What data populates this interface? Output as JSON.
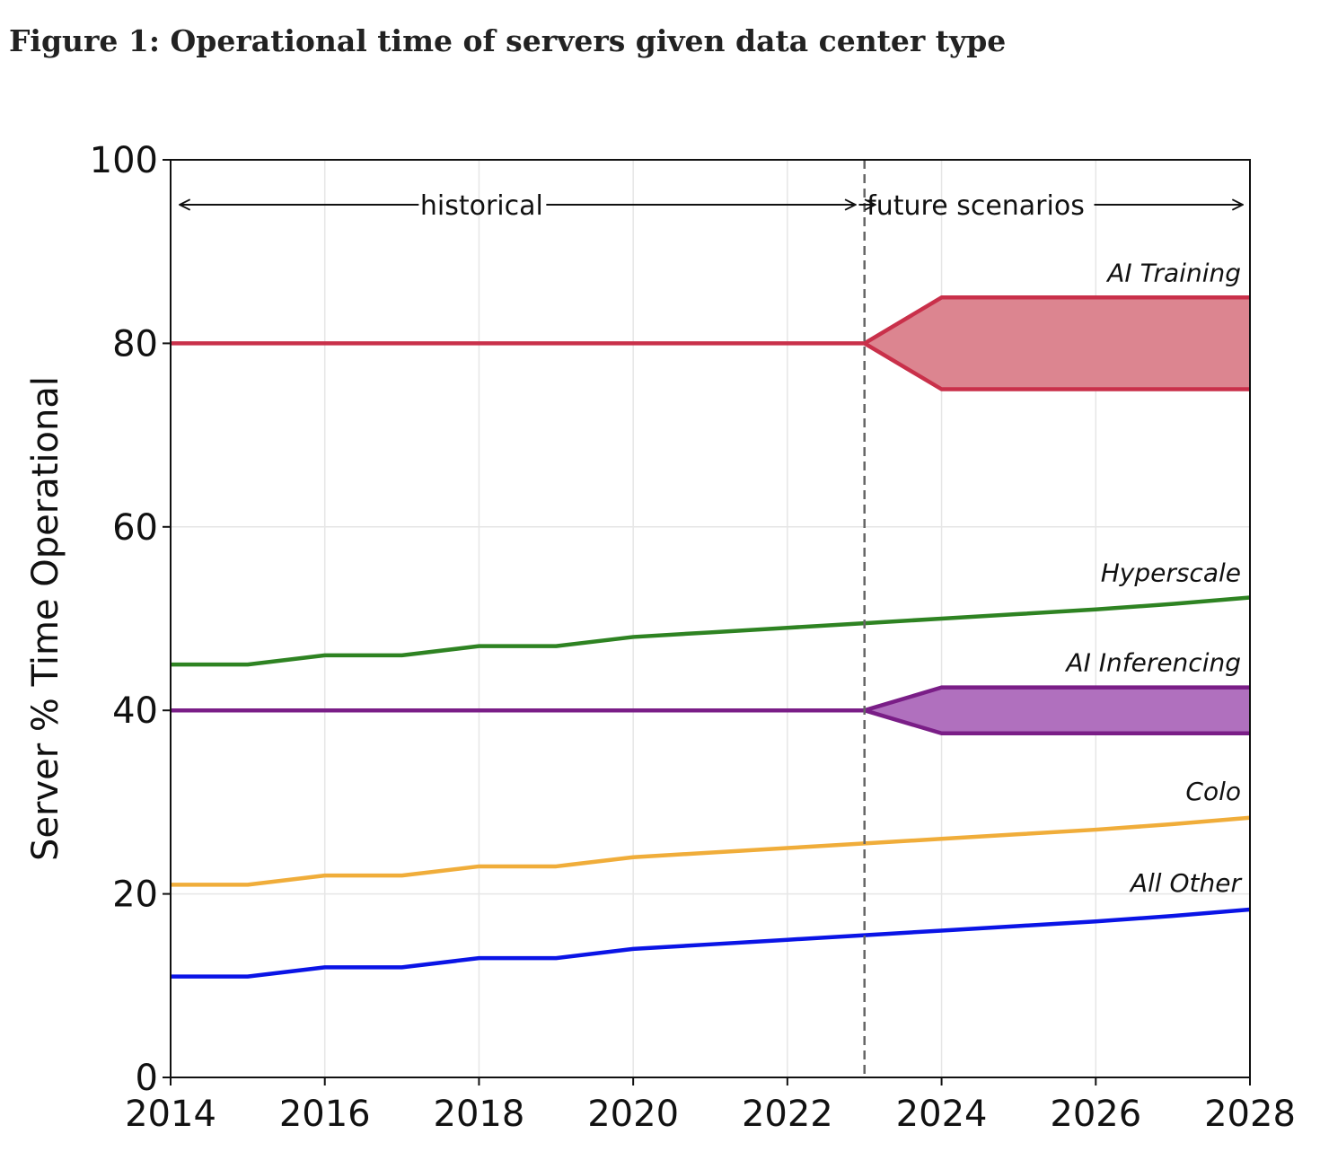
{
  "figure_title": "Figure 1: Operational time of servers given data center type",
  "chart_data": {
    "type": "line",
    "title": "Figure 1: Operational time of servers given data center type",
    "xlabel": "",
    "ylabel": "Server % Time Operational",
    "xlim": [
      2014,
      2028
    ],
    "ylim": [
      0,
      100
    ],
    "xticks": [
      2014,
      2016,
      2018,
      2020,
      2022,
      2024,
      2026,
      2028
    ],
    "yticks": [
      0,
      20,
      40,
      60,
      80,
      100
    ],
    "grid": true,
    "divider_x": 2023,
    "era_labels": {
      "historical": "historical",
      "future": "future scenarios"
    },
    "series": [
      {
        "name": "AI Training",
        "color": "#c9304a",
        "x": [
          2014,
          2023
        ],
        "values": [
          80,
          80
        ],
        "band": {
          "fill": "#dc8590",
          "x": [
            2023,
            2024,
            2028
          ],
          "upper": [
            80,
            85,
            85
          ],
          "lower": [
            80,
            75,
            75
          ]
        }
      },
      {
        "name": "Hyperscale",
        "color": "#2e8322",
        "x": [
          2014,
          2015,
          2016,
          2017,
          2018,
          2019,
          2020,
          2021,
          2022,
          2023,
          2024,
          2025,
          2026,
          2027,
          2028
        ],
        "values": [
          45,
          45,
          46,
          46,
          47,
          47,
          48,
          48.5,
          49,
          49.5,
          50,
          50.5,
          51,
          51.6,
          52.3
        ]
      },
      {
        "name": "AI Inferencing",
        "color": "#7a1e87",
        "x": [
          2014,
          2023
        ],
        "values": [
          40,
          40
        ],
        "band": {
          "fill": "#b070be",
          "x": [
            2023,
            2024,
            2028
          ],
          "upper": [
            40,
            42.5,
            42.5
          ],
          "lower": [
            40,
            37.5,
            37.5
          ]
        }
      },
      {
        "name": "Colo",
        "color": "#f0ad3a",
        "x": [
          2014,
          2015,
          2016,
          2017,
          2018,
          2019,
          2020,
          2021,
          2022,
          2023,
          2024,
          2025,
          2026,
          2027,
          2028
        ],
        "values": [
          21,
          21,
          22,
          22,
          23,
          23,
          24,
          24.5,
          25,
          25.5,
          26,
          26.5,
          27,
          27.6,
          28.3
        ]
      },
      {
        "name": "All Other",
        "color": "#0a14e6",
        "x": [
          2014,
          2015,
          2016,
          2017,
          2018,
          2019,
          2020,
          2021,
          2022,
          2023,
          2024,
          2025,
          2026,
          2027,
          2028
        ],
        "values": [
          11,
          11,
          12,
          12,
          13,
          13,
          14,
          14.5,
          15,
          15.5,
          16,
          16.5,
          17,
          17.6,
          18.3
        ]
      }
    ]
  }
}
